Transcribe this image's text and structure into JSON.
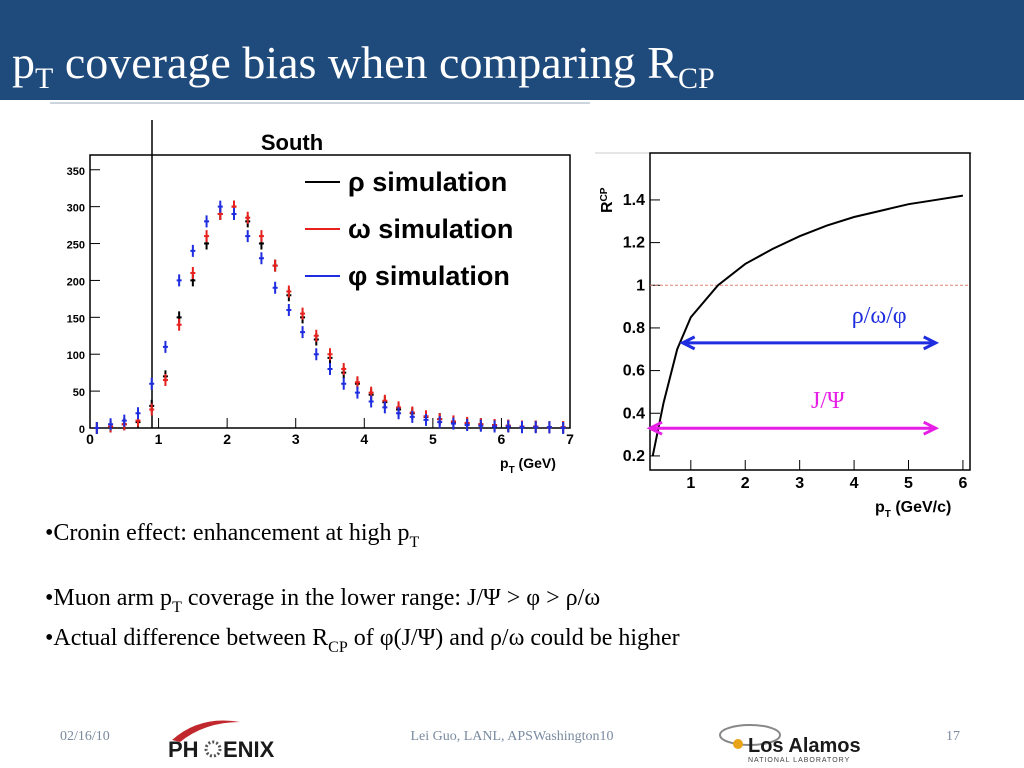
{
  "title": {
    "main": "p",
    "sub": "T",
    "rest": " coverage bias when comparing R",
    "sub2": "CP"
  },
  "bullets": [
    [
      {
        "t": "•Cronin effect: enhancement at high p"
      },
      {
        "sub": "T"
      }
    ],
    [
      {
        "t": "•Muon arm p"
      },
      {
        "sub": "T"
      },
      {
        "t": " coverage in the lower range: J/Ψ > φ > ρ/ω"
      }
    ],
    [
      {
        "t": "•Actual difference between R"
      },
      {
        "sub": "CP"
      },
      {
        "t": " of φ(J/Ψ) and ρ/ω could be higher"
      }
    ]
  ],
  "footer": {
    "date": "02/16/10",
    "author": "Lei Guo, LANL, APSWashington10",
    "page": "17",
    "logo_left": [
      "PH",
      "ENIX"
    ],
    "logo_right": [
      "Los Alamos",
      "NATIONAL LABORATORY"
    ]
  },
  "chart_data": [
    {
      "type": "scatter",
      "title": "South",
      "xlabel": "p",
      "xlabel_sub": "T",
      "xlabel_rest": " (GeV)",
      "x": [
        0.1,
        0.3,
        0.5,
        0.7,
        0.9,
        1.1,
        1.3,
        1.5,
        1.7,
        1.9,
        2.1,
        2.3,
        2.5,
        2.7,
        2.9,
        3.1,
        3.3,
        3.5,
        3.7,
        3.9,
        4.1,
        4.3,
        4.5,
        4.7,
        4.9,
        5.1,
        5.3,
        5.5,
        5.7,
        5.9,
        6.1,
        6.3,
        6.5,
        6.7,
        6.9
      ],
      "series": [
        {
          "name": "ρ simulation",
          "color": "#000000",
          "values": [
            0,
            2,
            5,
            8,
            30,
            70,
            150,
            200,
            250,
            290,
            300,
            280,
            250,
            220,
            180,
            150,
            120,
            95,
            75,
            60,
            45,
            35,
            25,
            20,
            15,
            12,
            8,
            6,
            5,
            4,
            3,
            2,
            2,
            1,
            1
          ]
        },
        {
          "name": "ω simulation",
          "color": "#e8211d",
          "values": [
            0,
            2,
            5,
            10,
            25,
            65,
            140,
            210,
            260,
            290,
            300,
            285,
            260,
            220,
            185,
            155,
            125,
            100,
            80,
            62,
            48,
            37,
            28,
            21,
            16,
            12,
            9,
            7,
            5,
            4,
            3,
            2,
            2,
            1,
            1
          ]
        },
        {
          "name": "φ simulation",
          "color": "#1f2de0",
          "values": [
            0,
            5,
            10,
            20,
            60,
            110,
            200,
            240,
            280,
            300,
            290,
            260,
            230,
            190,
            160,
            130,
            100,
            80,
            60,
            48,
            36,
            28,
            20,
            15,
            11,
            8,
            6,
            4,
            3,
            2,
            2,
            1,
            1,
            1,
            0
          ]
        }
      ],
      "xlim": [
        0,
        7
      ],
      "xticks": [
        0,
        1,
        2,
        3,
        4,
        5,
        6,
        7
      ],
      "ylim": [
        0,
        370
      ],
      "yticks": [
        0,
        50,
        100,
        150,
        200,
        250,
        300,
        350
      ]
    },
    {
      "type": "line",
      "ylabel": "R",
      "ylabel_sub": "CP",
      "xlabel": "p",
      "xlabel_sub": "T",
      "xlabel_rest": " (GeV/c)",
      "x": [
        0.3,
        0.5,
        0.75,
        1,
        1.5,
        2,
        2.5,
        3,
        3.5,
        4,
        4.5,
        5,
        5.5,
        6
      ],
      "series": [
        {
          "color": "#000000",
          "values": [
            0.2,
            0.45,
            0.7,
            0.85,
            1.0,
            1.1,
            1.17,
            1.23,
            1.28,
            1.32,
            1.35,
            1.38,
            1.4,
            1.42
          ]
        }
      ],
      "reference_line": 1,
      "annotations": [
        {
          "text": "ρ/ω/φ",
          "color": "#1f2de0",
          "x": [
            0.85,
            5.5
          ],
          "y": 0.73
        },
        {
          "text": "J/Ψ",
          "color": "#e61ee6",
          "x": [
            0.25,
            5.5
          ],
          "y": 0.33
        }
      ],
      "xlim": [
        0.25,
        6.13
      ],
      "xticks": [
        1,
        2,
        3,
        4,
        5,
        6
      ],
      "ylim": [
        0.134,
        1.62
      ],
      "yticks": [
        0.2,
        0.4,
        0.6,
        0.8,
        1,
        1.2,
        1.4
      ]
    }
  ]
}
